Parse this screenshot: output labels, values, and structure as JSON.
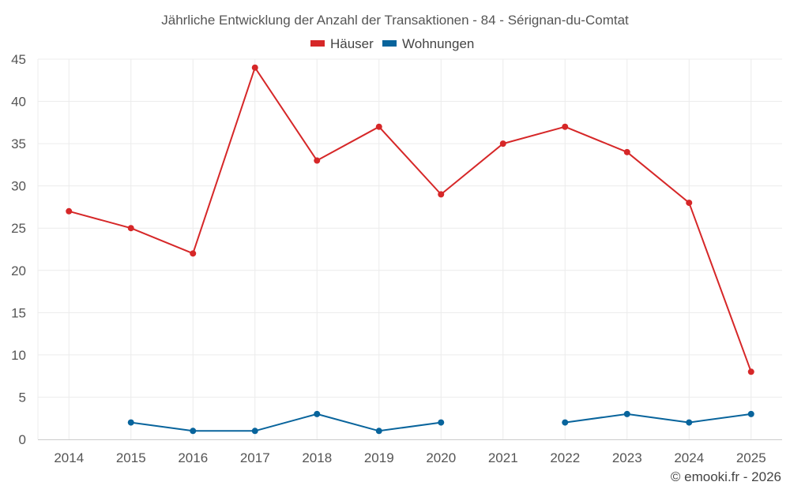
{
  "chart_data": {
    "type": "line",
    "title": "Jährliche Entwicklung der Anzahl der Transaktionen - 84 - Sérignan-du-Comtat",
    "categories": [
      "2014",
      "2015",
      "2016",
      "2017",
      "2018",
      "2019",
      "2020",
      "2021",
      "2022",
      "2023",
      "2024",
      "2025"
    ],
    "series": [
      {
        "name": "Häuser",
        "color": "#d62728",
        "values": [
          27,
          25,
          22,
          44,
          33,
          37,
          29,
          35,
          37,
          34,
          28,
          8
        ]
      },
      {
        "name": "Wohnungen",
        "color": "#08649c",
        "values": [
          null,
          2,
          1,
          1,
          3,
          1,
          2,
          null,
          2,
          3,
          2,
          3
        ]
      }
    ],
    "ylim": [
      0,
      45
    ],
    "yticks": [
      "0",
      "5",
      "10",
      "15",
      "20",
      "25",
      "30",
      "35",
      "40",
      "45"
    ],
    "grid": true,
    "legend_position": "top-center",
    "xlabel": "",
    "ylabel": ""
  },
  "credit": "© emooki.fr - 2026"
}
